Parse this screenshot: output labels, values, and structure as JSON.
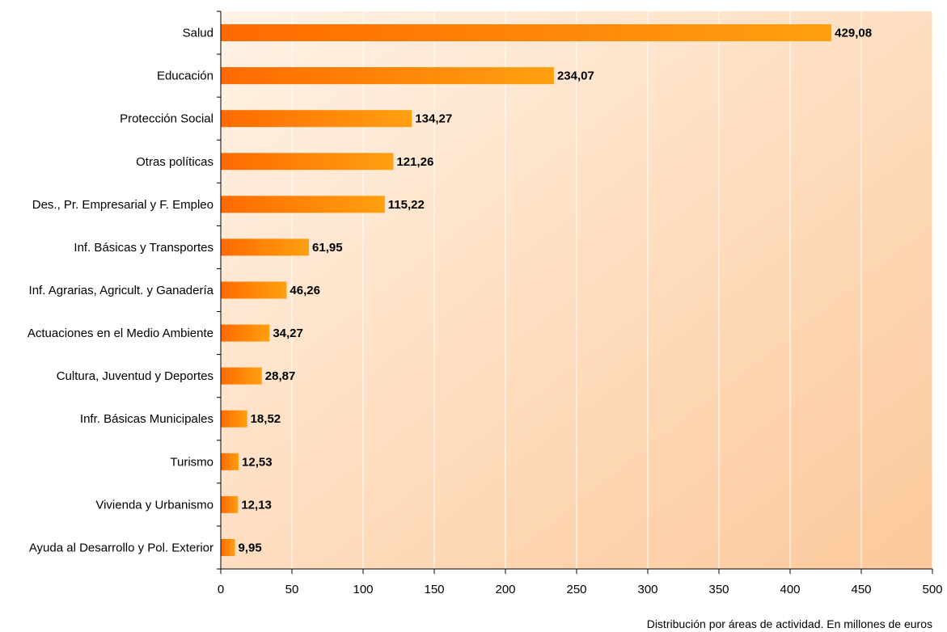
{
  "chart_data": {
    "type": "bar",
    "orientation": "horizontal",
    "categories": [
      "Salud",
      "Educación",
      "Protección Social",
      "Otras políticas",
      "Des., Pr. Empresarial y F. Empleo",
      "Inf. Básicas y Transportes",
      "Inf. Agrarias, Agricult. y Ganadería",
      "Actuaciones en el Medio Ambiente",
      "Cultura, Juventud y Deportes",
      "Infr. Básicas Municipales",
      "Turismo",
      "Vivienda y Urbanismo",
      "Ayuda al Desarrollo y Pol. Exterior"
    ],
    "values": [
      429.08,
      234.07,
      134.27,
      121.26,
      115.22,
      61.95,
      46.26,
      34.27,
      28.87,
      18.52,
      12.53,
      12.13,
      9.95
    ],
    "value_labels": [
      "429,08",
      "234,07",
      "134,27",
      "121,26",
      "115,22",
      "61,95",
      "46,26",
      "34,27",
      "28,87",
      "18,52",
      "12,53",
      "12,13",
      "9,95"
    ],
    "xlim": [
      0,
      500
    ],
    "xticks": [
      0,
      50,
      100,
      150,
      200,
      250,
      300,
      350,
      400,
      450,
      500
    ],
    "xlabel": "Distribución por áreas de actividad. En millones de euros",
    "title": "",
    "grid": "vertical",
    "legend": "none"
  },
  "colors": {
    "plot_bg_start": "#fff3e6",
    "plot_bg_end": "#fcc89a",
    "bar_start": "#ff6a00",
    "bar_end": "#ffa010",
    "gridline": "#ffffff",
    "axis": "#000000"
  }
}
